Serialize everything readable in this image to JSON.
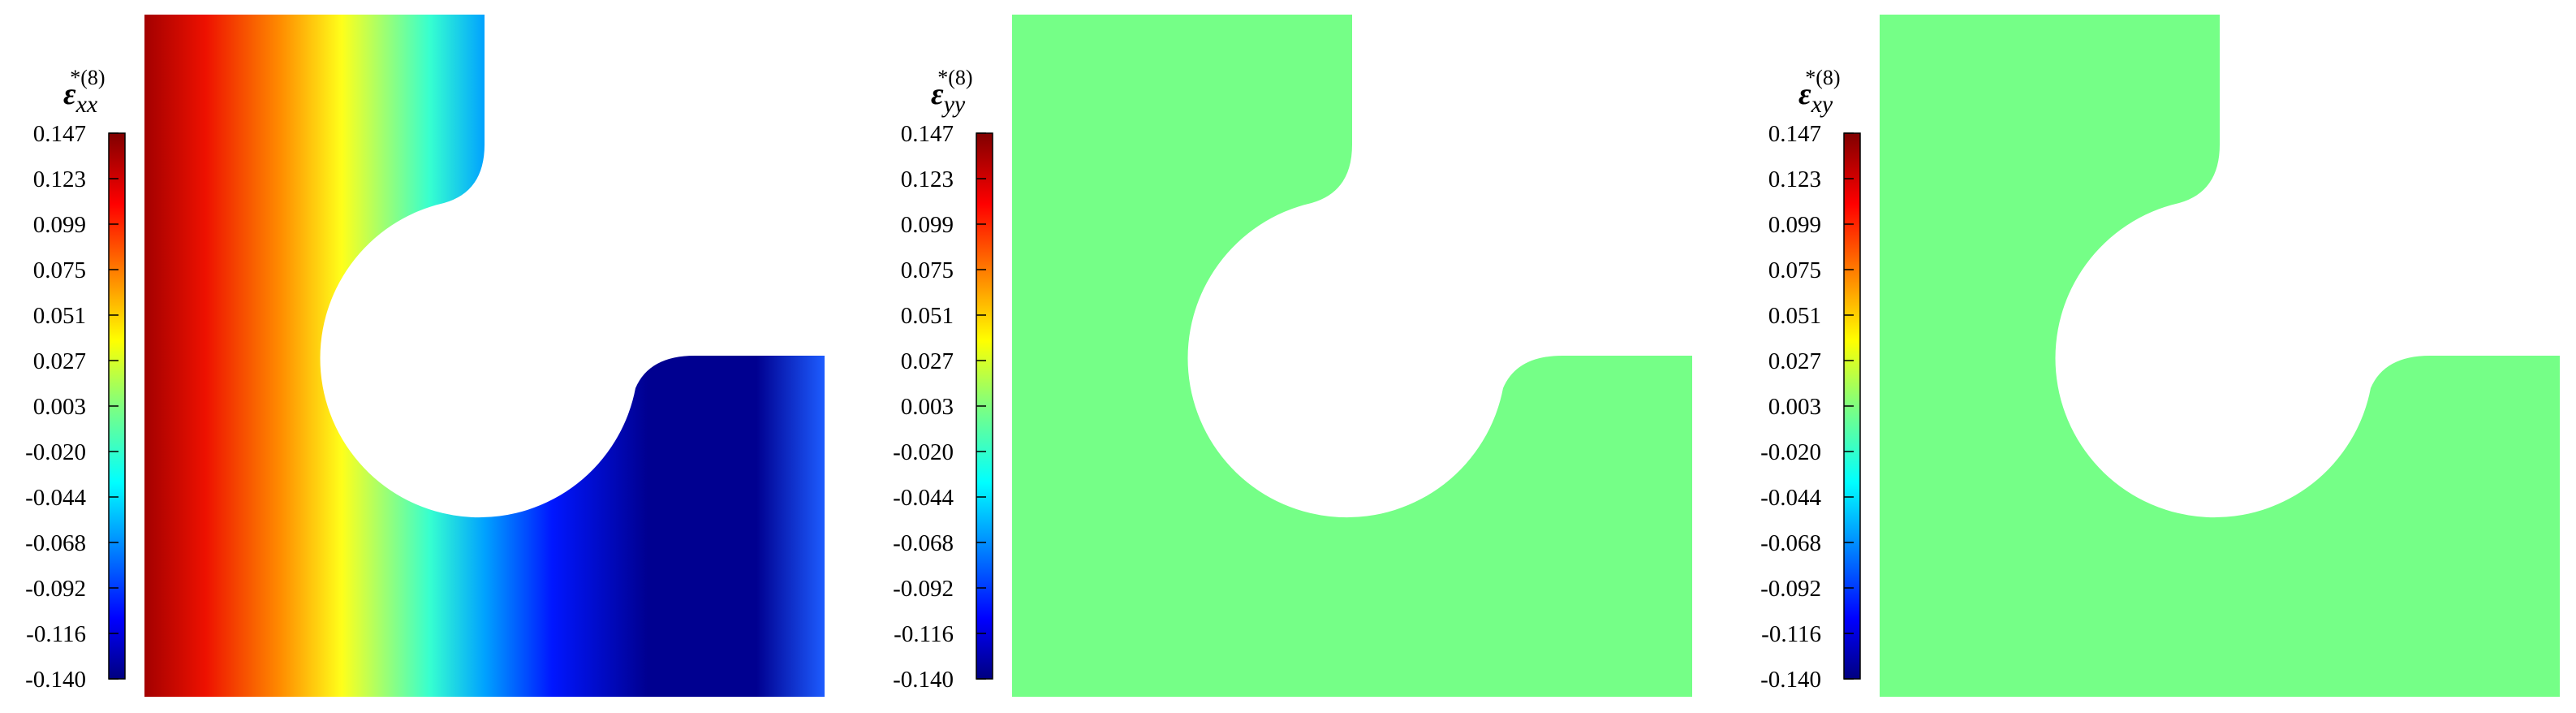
{
  "colorbar": {
    "ticks": [
      "0.147",
      "0.123",
      "0.099",
      "0.075",
      "0.051",
      "0.027",
      "0.003",
      "-0.020",
      "-0.044",
      "-0.068",
      "-0.092",
      "-0.116",
      "-0.140"
    ],
    "min": -0.14,
    "max": 0.147,
    "colormap": "jet"
  },
  "panels": [
    {
      "id": "exx",
      "symbol": "ε",
      "subscript": "xx",
      "superscript": "*(8)",
      "field": "gradient-x",
      "field_colors": [
        "#a30000",
        "#ee1100",
        "#ff8c00",
        "#ffff1a",
        "#36ffd0",
        "#00a2ff",
        "#0016ff",
        "#000090",
        "#000090",
        "#1d5cff"
      ]
    },
    {
      "id": "eyy",
      "symbol": "ε",
      "subscript": "yy",
      "superscript": "*(8)",
      "field": "uniform",
      "fill_color": "#75ff87"
    },
    {
      "id": "exy",
      "symbol": "ε",
      "subscript": "xy",
      "superscript": "*(8)",
      "field": "uniform",
      "fill_color": "#75ff87"
    }
  ]
}
